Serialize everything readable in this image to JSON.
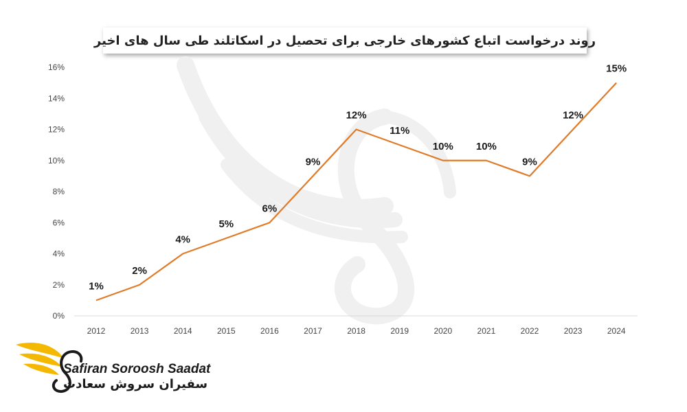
{
  "chart_title": "روند درخواست اتباع کشورهای خارجی برای تحصیل در اسکاتلند طی سال های اخیر",
  "brand": {
    "name_en": "Safiran Soroosh Saadat",
    "name_fa": "سفیران سروش سعادت",
    "logo_icon": "winged-bird-logo-icon",
    "accent_color": "#F5B800"
  },
  "chart_data": {
    "type": "line",
    "title": "روند درخواست اتباع کشورهای خارجی برای تحصیل در اسکاتلند طی سال های اخیر",
    "categories": [
      "2012",
      "2013",
      "2014",
      "2015",
      "2016",
      "2017",
      "2018",
      "2019",
      "2020",
      "2021",
      "2022",
      "2023",
      "2024"
    ],
    "series": [
      {
        "values": [
          1,
          2,
          4,
          5,
          6,
          9,
          12,
          11,
          10,
          10,
          9,
          12,
          15
        ],
        "data_labels": [
          "1%",
          "2%",
          "4%",
          "5%",
          "6%",
          "9%",
          "12%",
          "11%",
          "10%",
          "10%",
          "9%",
          "12%",
          "15%"
        ],
        "color": "#E07B2A"
      }
    ],
    "ylim": [
      0,
      16
    ],
    "yticks": [
      "0%",
      "2%",
      "4%",
      "6%",
      "8%",
      "10%",
      "12%",
      "14%",
      "16%"
    ],
    "xlabel": "",
    "ylabel": "",
    "grid": false,
    "legend": "none"
  }
}
